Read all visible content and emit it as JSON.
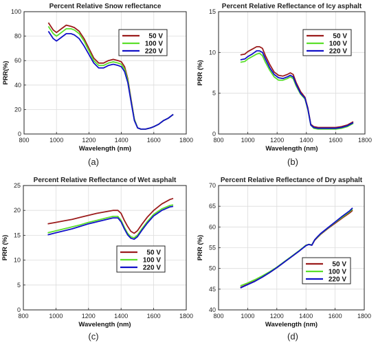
{
  "chart_data": [
    {
      "type": "line",
      "panel": "(a)",
      "title": "Percent Relative Snow reflectance",
      "xlabel": "Wavelength (nm)",
      "ylabel": "PRR(%)",
      "xlim": [
        800,
        1800
      ],
      "ylim": [
        0,
        100
      ],
      "xticks": [
        800,
        1000,
        1200,
        1400,
        1600,
        1800
      ],
      "yticks": [
        0,
        20,
        40,
        60,
        80,
        100
      ],
      "grid": true,
      "legend": "top-right",
      "series": [
        {
          "name": "50 V",
          "color": "#9b1b1b",
          "x": [
            950,
            980,
            1000,
            1030,
            1060,
            1090,
            1110,
            1140,
            1170,
            1200,
            1230,
            1260,
            1290,
            1320,
            1350,
            1380,
            1400,
            1420,
            1440,
            1460,
            1480,
            1500,
            1520,
            1550,
            1580,
            1600,
            1630,
            1660,
            1690,
            1720
          ],
          "y": [
            91,
            85,
            83,
            86,
            89,
            88,
            87,
            84,
            78,
            70,
            62,
            58,
            58,
            60,
            61,
            60,
            59,
            55,
            45,
            28,
            12,
            5,
            4,
            4,
            5,
            6,
            8,
            11,
            13,
            16
          ]
        },
        {
          "name": "100 V",
          "color": "#5adf2a",
          "x": [
            950,
            980,
            1000,
            1030,
            1060,
            1090,
            1110,
            1140,
            1170,
            1200,
            1230,
            1260,
            1290,
            1320,
            1350,
            1380,
            1400,
            1420,
            1440,
            1460,
            1480,
            1500,
            1520,
            1550,
            1580,
            1600,
            1630,
            1660,
            1690,
            1720
          ],
          "y": [
            88,
            82,
            80,
            83,
            86,
            86,
            85,
            82,
            76,
            68,
            60,
            56,
            56,
            58,
            59,
            58,
            57,
            53,
            44,
            27,
            12,
            5,
            4,
            4,
            5,
            6,
            8,
            11,
            13,
            16
          ]
        },
        {
          "name": "220 V",
          "color": "#1010c8",
          "x": [
            950,
            980,
            1000,
            1030,
            1060,
            1090,
            1110,
            1140,
            1170,
            1200,
            1230,
            1260,
            1290,
            1320,
            1350,
            1380,
            1400,
            1420,
            1440,
            1460,
            1480,
            1500,
            1520,
            1550,
            1580,
            1600,
            1630,
            1660,
            1690,
            1720
          ],
          "y": [
            84,
            78,
            76,
            79,
            82,
            82,
            81,
            78,
            72,
            65,
            58,
            54,
            54,
            56,
            57,
            56,
            55,
            51,
            42,
            26,
            11,
            5,
            4,
            4,
            5,
            6,
            8,
            11,
            13,
            16
          ]
        }
      ]
    },
    {
      "type": "line",
      "panel": "(b)",
      "title": "Percent Relative Reflectance of Icy asphalt",
      "xlabel": "Wavelength (nm)",
      "ylabel": "PRR (%)",
      "xlim": [
        800,
        1800
      ],
      "ylim": [
        0,
        15
      ],
      "xticks": [
        800,
        1000,
        1200,
        1400,
        1600,
        1800
      ],
      "yticks": [
        0,
        5,
        10,
        15
      ],
      "grid": true,
      "legend": "top-right",
      "series": [
        {
          "name": "50 V",
          "color": "#9b1b1b",
          "x": [
            950,
            980,
            1000,
            1030,
            1060,
            1080,
            1100,
            1120,
            1150,
            1180,
            1210,
            1240,
            1270,
            1290,
            1310,
            1330,
            1360,
            1390,
            1410,
            1430,
            1450,
            1480,
            1520,
            1560,
            1600,
            1640,
            1680,
            1720
          ],
          "y": [
            9.7,
            9.8,
            10.1,
            10.4,
            10.7,
            10.7,
            10.5,
            9.6,
            8.5,
            7.6,
            7.2,
            7.1,
            7.3,
            7.5,
            7.3,
            6.3,
            5.2,
            4.5,
            3.2,
            1.2,
            0.9,
            0.8,
            0.8,
            0.8,
            0.8,
            0.9,
            1.1,
            1.5
          ]
        },
        {
          "name": "100 V",
          "color": "#5adf2a",
          "x": [
            950,
            980,
            1000,
            1030,
            1060,
            1080,
            1100,
            1120,
            1150,
            1180,
            1210,
            1240,
            1270,
            1290,
            1310,
            1330,
            1360,
            1390,
            1410,
            1430,
            1450,
            1480,
            1520,
            1560,
            1600,
            1640,
            1680,
            1720
          ],
          "y": [
            8.8,
            8.9,
            9.2,
            9.5,
            9.8,
            9.9,
            9.6,
            8.8,
            7.8,
            7.0,
            6.6,
            6.6,
            6.8,
            7.0,
            6.8,
            5.9,
            4.9,
            4.3,
            3.0,
            1.1,
            0.7,
            0.6,
            0.6,
            0.6,
            0.6,
            0.7,
            0.9,
            1.3
          ]
        },
        {
          "name": "220 V",
          "color": "#1010c8",
          "x": [
            950,
            980,
            1000,
            1030,
            1060,
            1080,
            1100,
            1120,
            1150,
            1180,
            1210,
            1240,
            1270,
            1290,
            1310,
            1330,
            1360,
            1390,
            1410,
            1430,
            1450,
            1480,
            1520,
            1560,
            1600,
            1640,
            1680,
            1720
          ],
          "y": [
            9.1,
            9.2,
            9.5,
            9.8,
            10.2,
            10.2,
            10.0,
            9.2,
            8.1,
            7.3,
            6.9,
            6.8,
            7.0,
            7.2,
            7.0,
            6.1,
            5.0,
            4.4,
            3.1,
            1.1,
            0.8,
            0.7,
            0.7,
            0.7,
            0.7,
            0.8,
            1.0,
            1.4
          ]
        }
      ]
    },
    {
      "type": "line",
      "panel": "(c)",
      "title": "Percent Relative Reflectance of Wet asphalt",
      "xlabel": "Wavelength (nm)",
      "ylabel": "PRR (%)",
      "xlim": [
        800,
        1800
      ],
      "ylim": [
        0,
        25
      ],
      "xticks": [
        800,
        1000,
        1200,
        1400,
        1600,
        1800
      ],
      "yticks": [
        0,
        5,
        10,
        15,
        20,
        25
      ],
      "grid": true,
      "legend": "bottom-right",
      "series": [
        {
          "name": "50 V",
          "color": "#9b1b1b",
          "x": [
            950,
            1000,
            1050,
            1100,
            1150,
            1200,
            1250,
            1300,
            1350,
            1380,
            1400,
            1420,
            1440,
            1460,
            1480,
            1500,
            1530,
            1560,
            1600,
            1650,
            1700,
            1720
          ],
          "y": [
            17.3,
            17.6,
            17.9,
            18.2,
            18.6,
            19.0,
            19.4,
            19.7,
            20.0,
            20.0,
            19.4,
            18.0,
            16.8,
            15.8,
            15.4,
            15.9,
            17.3,
            18.6,
            20.0,
            21.3,
            22.2,
            22.4
          ]
        },
        {
          "name": "100 V",
          "color": "#5adf2a",
          "x": [
            950,
            1000,
            1050,
            1100,
            1150,
            1200,
            1250,
            1300,
            1350,
            1380,
            1400,
            1420,
            1440,
            1460,
            1480,
            1500,
            1530,
            1560,
            1600,
            1650,
            1700,
            1720
          ],
          "y": [
            15.5,
            15.9,
            16.3,
            16.7,
            17.1,
            17.6,
            18.0,
            18.4,
            18.8,
            18.8,
            18.0,
            16.6,
            15.4,
            14.7,
            14.5,
            15.0,
            16.4,
            17.7,
            19.2,
            20.3,
            21.0,
            21.1
          ]
        },
        {
          "name": "220 V",
          "color": "#1010c8",
          "x": [
            950,
            1000,
            1050,
            1100,
            1150,
            1200,
            1250,
            1300,
            1350,
            1380,
            1400,
            1420,
            1440,
            1460,
            1480,
            1500,
            1530,
            1560,
            1600,
            1650,
            1700,
            1720
          ],
          "y": [
            15.1,
            15.5,
            15.9,
            16.3,
            16.8,
            17.3,
            17.7,
            18.1,
            18.5,
            18.5,
            17.7,
            16.3,
            15.1,
            14.4,
            14.2,
            14.7,
            16.1,
            17.4,
            18.9,
            20.0,
            20.7,
            20.8
          ]
        }
      ]
    },
    {
      "type": "line",
      "panel": "(d)",
      "title": "Percent Relative Reflectance of Dry asphalt",
      "xlabel": "Wavelength (nm)",
      "ylabel": "PRR (%)",
      "xlim": [
        800,
        1800
      ],
      "ylim": [
        40,
        70
      ],
      "xticks": [
        800,
        1000,
        1200,
        1400,
        1600,
        1800
      ],
      "yticks": [
        40,
        45,
        50,
        55,
        60,
        65,
        70
      ],
      "grid": true,
      "legend": "bottom-right",
      "series": [
        {
          "name": "50 V",
          "color": "#9b1b1b",
          "x": [
            950,
            1000,
            1050,
            1100,
            1150,
            1200,
            1250,
            1300,
            1350,
            1400,
            1420,
            1440,
            1460,
            1480,
            1500,
            1550,
            1600,
            1650,
            1700,
            1720
          ],
          "y": [
            45.4,
            46.2,
            47.0,
            47.9,
            49.0,
            50.2,
            51.5,
            52.8,
            54.1,
            55.6,
            55.8,
            55.6,
            56.8,
            57.5,
            58.2,
            59.6,
            60.9,
            62.2,
            63.4,
            64.0
          ]
        },
        {
          "name": "100 V",
          "color": "#5adf2a",
          "x": [
            950,
            1000,
            1050,
            1100,
            1150,
            1200,
            1250,
            1300,
            1350,
            1400,
            1420,
            1440,
            1460,
            1480,
            1500,
            1550,
            1600,
            1650,
            1700,
            1720
          ],
          "y": [
            45.8,
            46.5,
            47.3,
            48.2,
            49.2,
            50.3,
            51.6,
            52.9,
            54.2,
            55.6,
            55.8,
            55.7,
            56.9,
            57.6,
            58.3,
            59.7,
            61.1,
            62.4,
            63.7,
            64.3
          ]
        },
        {
          "name": "220 V",
          "color": "#1010c8",
          "x": [
            950,
            1000,
            1050,
            1100,
            1150,
            1200,
            1250,
            1300,
            1350,
            1400,
            1420,
            1440,
            1460,
            1480,
            1500,
            1550,
            1600,
            1650,
            1700,
            1720
          ],
          "y": [
            45.3,
            46.1,
            46.9,
            47.9,
            49.0,
            50.2,
            51.5,
            52.8,
            54.1,
            55.5,
            55.8,
            55.6,
            56.9,
            57.7,
            58.4,
            59.8,
            61.2,
            62.6,
            63.9,
            64.6
          ]
        }
      ]
    }
  ]
}
